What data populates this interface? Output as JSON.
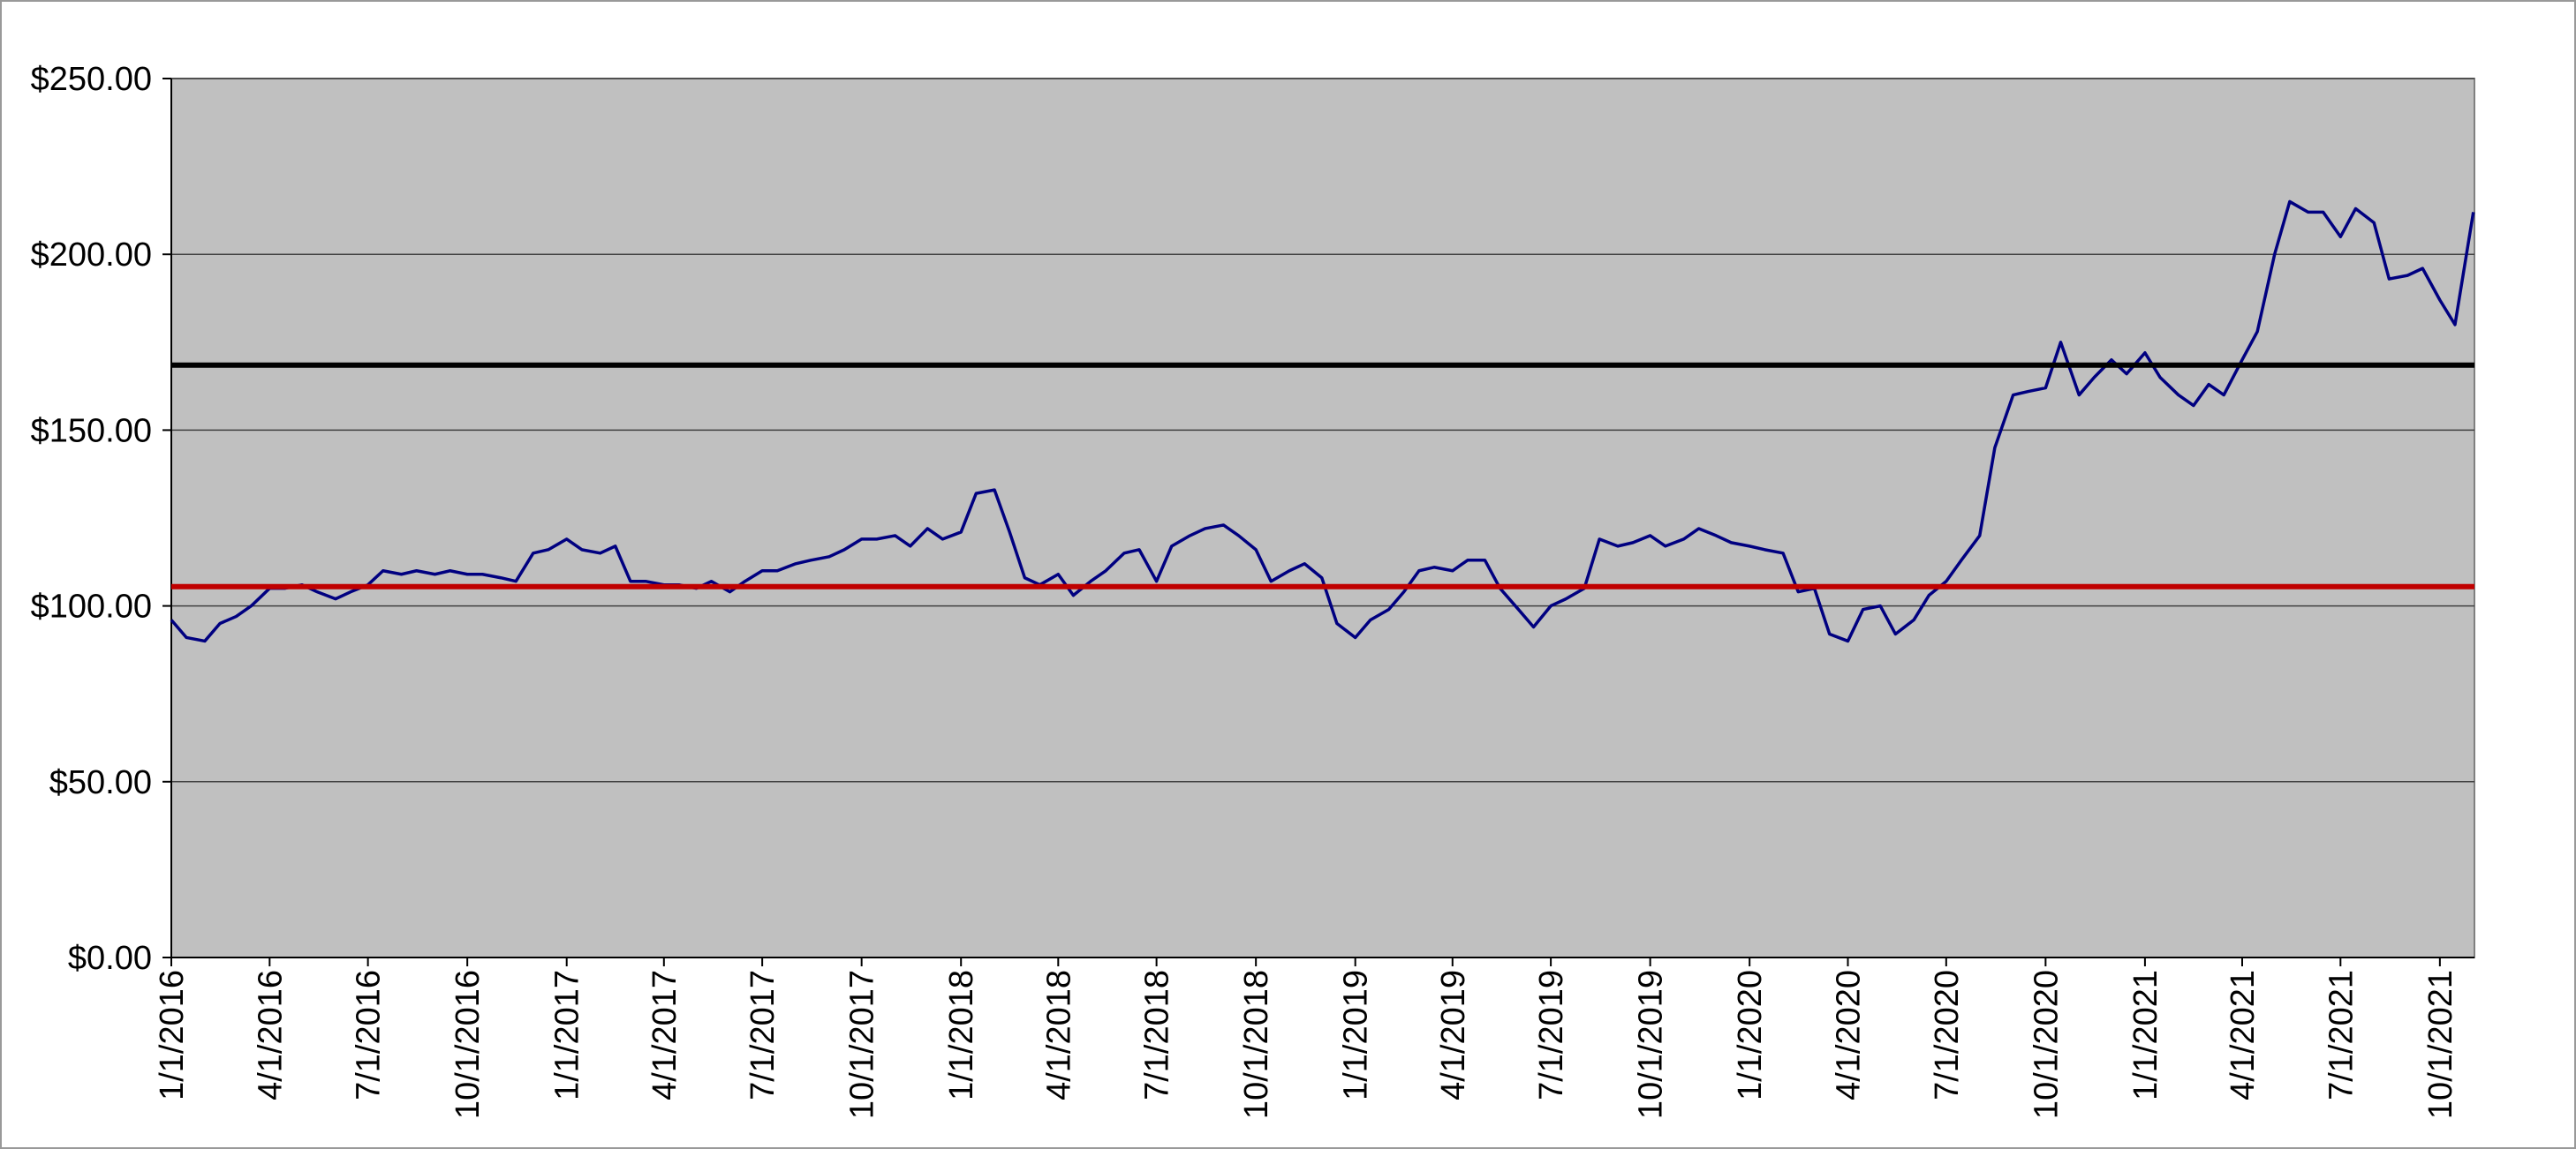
{
  "chart_data": {
    "type": "line",
    "x": [
      "1/1/2016",
      "1/15/2016",
      "2/1/2016",
      "2/15/2016",
      "3/1/2016",
      "3/15/2016",
      "4/1/2016",
      "4/15/2016",
      "5/1/2016",
      "5/15/2016",
      "6/1/2016",
      "6/15/2016",
      "7/1/2016",
      "7/15/2016",
      "8/1/2016",
      "8/15/2016",
      "9/1/2016",
      "9/15/2016",
      "10/1/2016",
      "10/15/2016",
      "11/1/2016",
      "11/15/2016",
      "12/1/2016",
      "12/15/2016",
      "1/1/2017",
      "1/15/2017",
      "2/1/2017",
      "2/15/2017",
      "3/1/2017",
      "3/15/2017",
      "4/1/2017",
      "4/15/2017",
      "5/1/2017",
      "5/15/2017",
      "6/1/2017",
      "6/15/2017",
      "7/1/2017",
      "7/15/2017",
      "8/1/2017",
      "8/15/2017",
      "9/1/2017",
      "9/15/2017",
      "10/1/2017",
      "10/15/2017",
      "11/1/2017",
      "11/15/2017",
      "12/1/2017",
      "12/15/2017",
      "1/1/2018",
      "1/15/2018",
      "2/1/2018",
      "2/15/2018",
      "3/1/2018",
      "3/15/2018",
      "4/1/2018",
      "4/15/2018",
      "5/1/2018",
      "5/15/2018",
      "6/1/2018",
      "6/15/2018",
      "7/1/2018",
      "7/15/2018",
      "8/1/2018",
      "8/15/2018",
      "9/1/2018",
      "9/15/2018",
      "10/1/2018",
      "10/15/2018",
      "11/1/2018",
      "11/15/2018",
      "12/1/2018",
      "12/15/2018",
      "1/1/2019",
      "1/15/2019",
      "2/1/2019",
      "2/15/2019",
      "3/1/2019",
      "3/15/2019",
      "4/1/2019",
      "4/15/2019",
      "5/1/2019",
      "5/15/2019",
      "6/1/2019",
      "6/15/2019",
      "7/1/2019",
      "7/15/2019",
      "8/1/2019",
      "8/15/2019",
      "9/1/2019",
      "9/15/2019",
      "10/1/2019",
      "10/15/2019",
      "11/1/2019",
      "11/15/2019",
      "12/1/2019",
      "12/15/2019",
      "1/1/2020",
      "1/15/2020",
      "2/1/2020",
      "2/15/2020",
      "3/1/2020",
      "3/15/2020",
      "4/1/2020",
      "4/15/2020",
      "5/1/2020",
      "5/15/2020",
      "6/1/2020",
      "6/15/2020",
      "7/1/2020",
      "7/15/2020",
      "8/1/2020",
      "8/15/2020",
      "9/1/2020",
      "9/15/2020",
      "10/1/2020",
      "10/15/2020",
      "11/1/2020",
      "11/15/2020",
      "12/1/2020",
      "12/15/2020",
      "1/1/2021",
      "1/15/2021",
      "2/1/2021",
      "2/15/2021",
      "3/1/2021",
      "3/15/2021",
      "4/1/2021",
      "4/15/2021",
      "5/1/2021",
      "5/15/2021",
      "6/1/2021",
      "6/15/2021",
      "7/1/2021",
      "7/15/2021",
      "8/1/2021",
      "8/15/2021",
      "9/1/2021",
      "9/15/2021",
      "10/1/2021",
      "10/15/2021",
      "11/1/2021"
    ],
    "series": [
      {
        "color": "#000080",
        "values": [
          96,
          91,
          90,
          95,
          97,
          100,
          105,
          105,
          106,
          104,
          102,
          104,
          106,
          110,
          109,
          110,
          109,
          110,
          109,
          109,
          108,
          107,
          115,
          116,
          119,
          116,
          115,
          117,
          107,
          107,
          106,
          106,
          105,
          107,
          104,
          107,
          110,
          110,
          112,
          113,
          114,
          116,
          119,
          119,
          120,
          117,
          122,
          119,
          121,
          132,
          133,
          121,
          108,
          106,
          109,
          103,
          107,
          110,
          115,
          116,
          107,
          117,
          120,
          122,
          123,
          120,
          116,
          107,
          110,
          112,
          108,
          95,
          91,
          96,
          99,
          104,
          110,
          111,
          110,
          113,
          113,
          105,
          99,
          94,
          100,
          102,
          105,
          119,
          117,
          118,
          120,
          117,
          119,
          122,
          120,
          118,
          117,
          116,
          115,
          104,
          105,
          92,
          90,
          99,
          100,
          92,
          96,
          103,
          107,
          113,
          120,
          145,
          160,
          161,
          162,
          175,
          160,
          165,
          170,
          166,
          172,
          165,
          160,
          157,
          163,
          160,
          170,
          178,
          200,
          215,
          212,
          212,
          205,
          213,
          209,
          193,
          194,
          196,
          187,
          180,
          212
        ]
      }
    ],
    "reference_lines": [
      {
        "value": 168.5,
        "color": "#000000"
      },
      {
        "value": 105.5,
        "color": "#c00000"
      }
    ],
    "xlim": [
      "1/1/2016",
      "11/2/2021"
    ],
    "xticks": [
      "1/1/2016",
      "4/1/2016",
      "7/1/2016",
      "10/1/2016",
      "1/1/2017",
      "4/1/2017",
      "7/1/2017",
      "10/1/2017",
      "1/1/2018",
      "4/1/2018",
      "7/1/2018",
      "10/1/2018",
      "1/1/2019",
      "4/1/2019",
      "7/1/2019",
      "10/1/2019",
      "1/1/2020",
      "4/1/2020",
      "7/1/2020",
      "10/1/2020",
      "1/1/2021",
      "4/1/2021",
      "7/1/2021",
      "10/1/2021"
    ],
    "ylim": [
      0,
      250
    ],
    "yticks": [
      {
        "value": 0,
        "label": "$0.00"
      },
      {
        "value": 50,
        "label": "$50.00"
      },
      {
        "value": 100,
        "label": "$100.00"
      },
      {
        "value": 150,
        "label": "$150.00"
      },
      {
        "value": 200,
        "label": "$200.00"
      },
      {
        "value": 250,
        "label": "$250.00"
      }
    ],
    "grid": true,
    "plot_background": "#c0c0c0"
  }
}
